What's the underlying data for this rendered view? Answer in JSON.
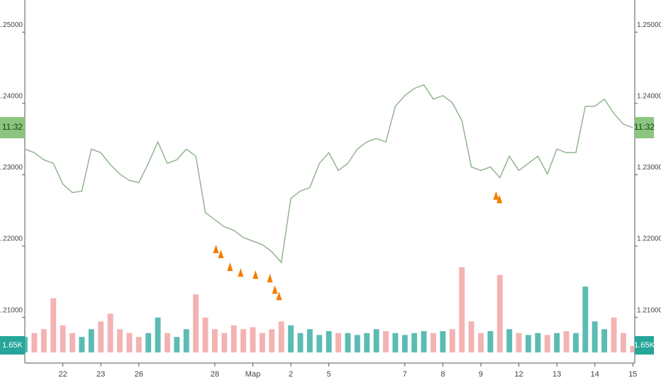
{
  "chart_data": {
    "type": "line",
    "x": [
      -1,
      -0.75,
      -0.5,
      -0.25,
      0,
      0.25,
      0.5,
      0.75,
      1,
      1.25,
      1.5,
      1.75,
      2,
      2.25,
      2.5,
      2.75,
      3,
      3.25,
      3.5,
      3.75,
      4,
      4.25,
      4.5,
      4.75,
      5,
      5.25,
      5.5,
      5.75,
      6,
      6.25,
      6.5,
      6.75,
      7,
      7.25,
      7.5,
      7.75,
      8,
      8.25,
      8.5,
      8.75,
      9,
      9.25,
      9.5,
      9.75,
      10,
      10.25,
      10.5,
      10.75,
      11,
      11.25,
      11.5,
      11.75,
      12,
      12.25,
      12.5,
      12.75,
      13,
      13.25,
      13.5,
      13.75,
      14,
      14.25,
      14.5,
      14.75,
      15
    ],
    "series": [
      {
        "color": "#93b48f",
        "values": [
          1.2336,
          1.2331,
          1.2321,
          1.2316,
          1.2287,
          1.2275,
          1.2277,
          1.2336,
          1.2331,
          1.2314,
          1.2301,
          1.2292,
          1.2289,
          1.2316,
          1.2346,
          1.2316,
          1.2321,
          1.2336,
          1.2326,
          1.2247,
          1.2237,
          1.2227,
          1.2222,
          1.2212,
          1.2207,
          1.2202,
          1.2192,
          1.2177,
          1.2267,
          1.2277,
          1.2282,
          1.2316,
          1.2331,
          1.2306,
          1.2316,
          1.2336,
          1.2346,
          1.2351,
          1.2346,
          1.2396,
          1.2411,
          1.2421,
          1.2426,
          1.2406,
          1.2411,
          1.2401,
          1.2376,
          1.2311,
          1.2306,
          1.2311,
          1.2296,
          1.2326,
          1.2306,
          1.2316,
          1.2326,
          1.2301,
          1.2336,
          1.2331,
          1.2331,
          1.2396,
          1.2396,
          1.2406,
          1.2386,
          1.2371,
          1.2366
        ]
      },
      {
        "type": "bar",
        "axis": "y2",
        "colors": [
          "#26a69a",
          "#ef9a9a"
        ],
        "values": [
          4000,
          5000,
          6000,
          14000,
          7000,
          5000,
          4000,
          6000,
          8000,
          10000,
          6000,
          5000,
          4000,
          5000,
          9000,
          5000,
          4000,
          6000,
          15000,
          9000,
          6000,
          5000,
          7000,
          6000,
          6500,
          5000,
          6000,
          8000,
          7000,
          5000,
          6000,
          4500,
          5500,
          5000,
          5000,
          4500,
          5000,
          6000,
          5500,
          5000,
          4500,
          5000,
          5500,
          5000,
          5500,
          6000,
          22000,
          8000,
          5000,
          5500,
          20000,
          6000,
          5000,
          4500,
          5000,
          4500,
          5000,
          5500,
          5000,
          17000,
          8000,
          6000,
          9000,
          5000,
          1650
        ]
      }
    ],
    "xlim": [
      -1,
      15.05
    ],
    "xticks": [
      {
        "value": 0,
        "label": "22"
      },
      {
        "value": 1,
        "label": "23"
      },
      {
        "value": 2,
        "label": "26"
      },
      {
        "value": 4,
        "label": "28"
      },
      {
        "value": 5,
        "label": "Мар"
      },
      {
        "value": 6,
        "label": "2"
      },
      {
        "value": 7,
        "label": "5"
      },
      {
        "value": 9,
        "label": "7"
      },
      {
        "value": 10,
        "label": "8"
      },
      {
        "value": 11,
        "label": "9"
      },
      {
        "value": 12,
        "label": "12"
      },
      {
        "value": 13,
        "label": "13"
      },
      {
        "value": 14,
        "label": "14"
      },
      {
        "value": 15,
        "label": "15"
      }
    ],
    "ylim": [
      1.2038,
      1.2545
    ],
    "yticks": [
      {
        "value": 1.21,
        "label": "1.21000"
      },
      {
        "value": 1.22,
        "label": "1.22000"
      },
      {
        "value": 1.23,
        "label": "1.23000"
      },
      {
        "value": 1.24,
        "label": "1.24000"
      },
      {
        "value": 1.25,
        "label": "1.25000"
      }
    ],
    "y2lim": [
      0,
      91000
    ],
    "markers": {
      "color": "#f57c00",
      "x": [
        4.03,
        4.16,
        4.4,
        4.68,
        5.07,
        5.45,
        5.58,
        5.69,
        11.4,
        11.49
      ],
      "y": [
        1.2202,
        1.2195,
        1.2177,
        1.2169,
        1.2166,
        1.2161,
        1.2145,
        1.2136,
        1.2277,
        1.2272
      ]
    },
    "price_tag": {
      "label": "11:32",
      "value": 1.2366,
      "color": "#8bc57f"
    },
    "volume_tag": {
      "label": "1.65K",
      "value": 1650,
      "color": "#26a69a"
    }
  }
}
